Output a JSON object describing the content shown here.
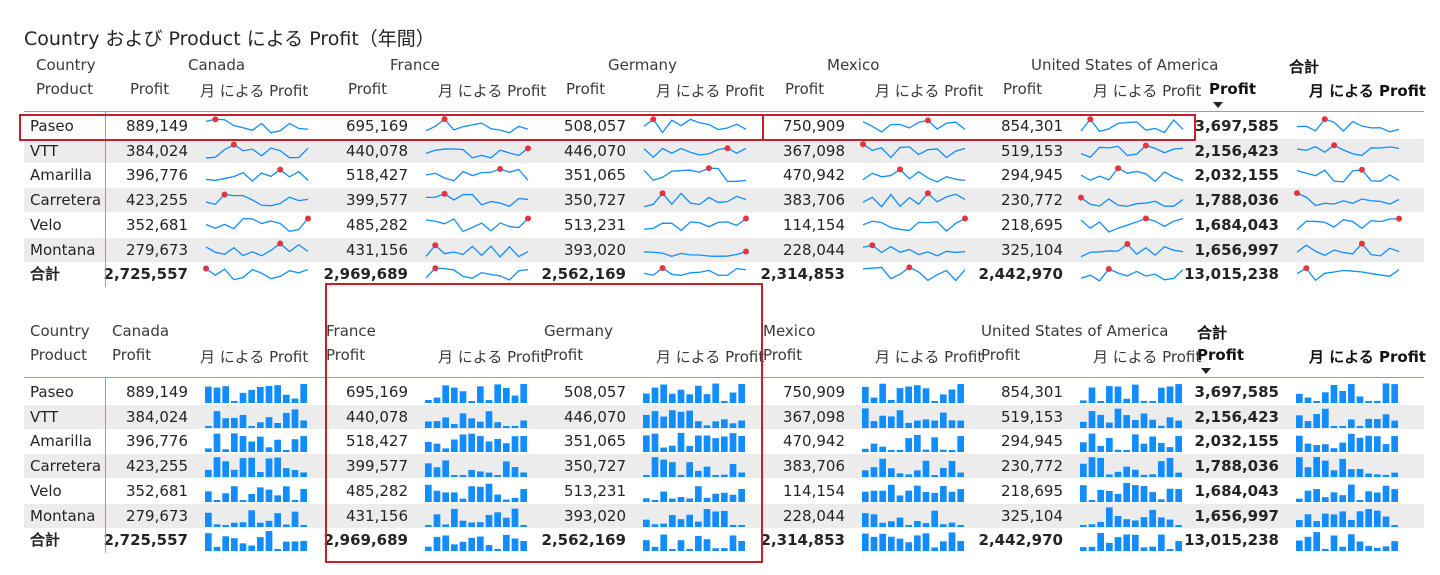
{
  "title": "Country および Product による Profit（年間）",
  "labels": {
    "country": "Country",
    "product": "Product",
    "profit": "Profit",
    "month_profit": "月 による Profit",
    "total": "合計"
  },
  "countries": [
    "Canada",
    "France",
    "Germany",
    "Mexico",
    "United States of America"
  ],
  "rows": [
    {
      "product": "Paseo",
      "values": [
        "889,149",
        "695,169",
        "508,057",
        "750,909",
        "854,301"
      ],
      "total": "3,697,585"
    },
    {
      "product": "VTT",
      "values": [
        "384,024",
        "440,078",
        "446,070",
        "367,098",
        "519,153"
      ],
      "total": "2,156,423"
    },
    {
      "product": "Amarilla",
      "values": [
        "396,776",
        "518,427",
        "351,065",
        "470,942",
        "294,945"
      ],
      "total": "2,032,155"
    },
    {
      "product": "Carretera",
      "values": [
        "423,255",
        "399,577",
        "350,727",
        "383,706",
        "230,772"
      ],
      "total": "1,788,036"
    },
    {
      "product": "Velo",
      "values": [
        "352,681",
        "485,282",
        "513,231",
        "114,154",
        "218,695"
      ],
      "total": "1,684,043"
    },
    {
      "product": "Montana",
      "values": [
        "279,673",
        "431,156",
        "393,020",
        "228,044",
        "325,104"
      ],
      "total": "1,656,997"
    }
  ],
  "grand": {
    "product": "合計",
    "values": [
      "2,725,557",
      "2,969,689",
      "2,562,169",
      "2,314,853",
      "2,442,970"
    ],
    "total": "13,015,238"
  },
  "colors": {
    "accent": "#118dff",
    "marker": "#e3343f",
    "highlight_box": "#c0212b",
    "row_shade": "#ececec"
  }
}
